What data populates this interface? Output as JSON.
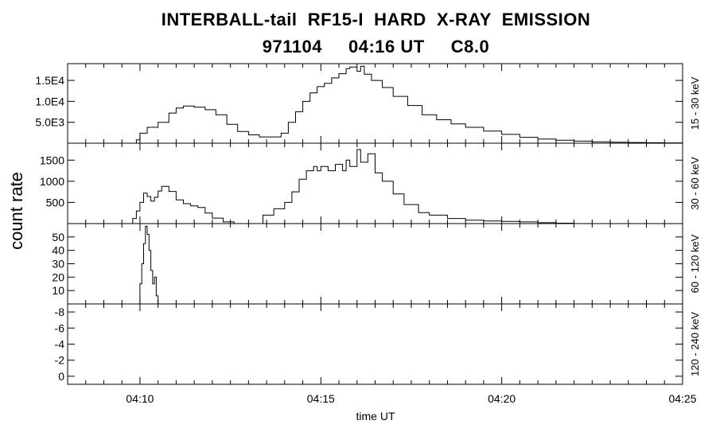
{
  "title": {
    "line1": "INTERBALL-tail  RF15-I  HARD  X-RAY  EMISSION",
    "line2": "971104     04:16 UT     C8.0"
  },
  "chart_data": {
    "type": "line",
    "ylabel": "count rate",
    "xlabel": "time UT",
    "x_axis": {
      "start_min": 248.0,
      "end_min": 265.0,
      "ticks": [
        {
          "min": 250,
          "label": "04:10"
        },
        {
          "min": 255,
          "label": "04:15"
        },
        {
          "min": 260,
          "label": "04:20"
        },
        {
          "min": 265,
          "label": "04:25"
        }
      ]
    },
    "panels": [
      {
        "name": "15 - 30 keV",
        "ylim": [
          0,
          19000
        ],
        "yticks": [
          {
            "v": 5000,
            "label": "5.0E3"
          },
          {
            "v": 10000,
            "label": "1.0E4"
          },
          {
            "v": 15000,
            "label": "1.5E4"
          }
        ],
        "series": [
          [
            249.7,
            0
          ],
          [
            249.9,
            800
          ],
          [
            250.0,
            2400
          ],
          [
            250.2,
            3800
          ],
          [
            250.5,
            5000
          ],
          [
            250.8,
            7200
          ],
          [
            251.0,
            8400
          ],
          [
            251.2,
            8900
          ],
          [
            251.5,
            8600
          ],
          [
            251.8,
            8000
          ],
          [
            252.1,
            6800
          ],
          [
            252.4,
            4500
          ],
          [
            252.7,
            2800
          ],
          [
            253.0,
            2000
          ],
          [
            253.3,
            1500
          ],
          [
            253.6,
            1500
          ],
          [
            253.9,
            2400
          ],
          [
            254.1,
            5000
          ],
          [
            254.3,
            7500
          ],
          [
            254.5,
            10000
          ],
          [
            254.7,
            12000
          ],
          [
            254.9,
            13500
          ],
          [
            255.1,
            14300
          ],
          [
            255.3,
            15600
          ],
          [
            255.5,
            16600
          ],
          [
            255.7,
            17800
          ],
          [
            255.8,
            18200
          ],
          [
            256.0,
            17200
          ],
          [
            256.1,
            18400
          ],
          [
            256.2,
            16500
          ],
          [
            256.4,
            15000
          ],
          [
            256.7,
            13300
          ],
          [
            257.0,
            11200
          ],
          [
            257.4,
            9000
          ],
          [
            257.8,
            6800
          ],
          [
            258.2,
            5600
          ],
          [
            258.6,
            4600
          ],
          [
            259.0,
            3800
          ],
          [
            259.5,
            2900
          ],
          [
            260.0,
            2100
          ],
          [
            260.5,
            1400
          ],
          [
            261.0,
            1000
          ],
          [
            261.5,
            700
          ],
          [
            262.0,
            500
          ],
          [
            262.5,
            350
          ],
          [
            263.0,
            250
          ],
          [
            263.5,
            180
          ],
          [
            264.0,
            120
          ],
          [
            264.5,
            80
          ],
          [
            265.0,
            40
          ]
        ]
      },
      {
        "name": "30 - 60 keV",
        "ylim": [
          0,
          1900
        ],
        "yticks": [
          {
            "v": 500,
            "label": "500"
          },
          {
            "v": 1000,
            "label": "1000"
          },
          {
            "v": 1500,
            "label": "1500"
          }
        ],
        "series": [
          [
            249.6,
            0
          ],
          [
            249.8,
            120
          ],
          [
            249.9,
            300
          ],
          [
            250.0,
            500
          ],
          [
            250.1,
            720
          ],
          [
            250.2,
            640
          ],
          [
            250.3,
            530
          ],
          [
            250.4,
            620
          ],
          [
            250.5,
            770
          ],
          [
            250.6,
            880
          ],
          [
            250.8,
            760
          ],
          [
            251.0,
            560
          ],
          [
            251.2,
            470
          ],
          [
            251.4,
            420
          ],
          [
            251.6,
            380
          ],
          [
            251.8,
            250
          ],
          [
            252.0,
            130
          ],
          [
            252.3,
            40
          ],
          [
            252.6,
            0
          ],
          [
            253.2,
            0
          ],
          [
            253.4,
            200
          ],
          [
            253.7,
            350
          ],
          [
            254.0,
            500
          ],
          [
            254.2,
            750
          ],
          [
            254.4,
            1050
          ],
          [
            254.6,
            1250
          ],
          [
            254.8,
            1350
          ],
          [
            254.9,
            1250
          ],
          [
            255.0,
            1350
          ],
          [
            255.2,
            1250
          ],
          [
            255.4,
            1400
          ],
          [
            255.6,
            1250
          ],
          [
            255.7,
            1500
          ],
          [
            255.8,
            1350
          ],
          [
            256.0,
            1750
          ],
          [
            256.1,
            1450
          ],
          [
            256.3,
            1650
          ],
          [
            256.5,
            1200
          ],
          [
            256.7,
            1000
          ],
          [
            257.0,
            700
          ],
          [
            257.3,
            450
          ],
          [
            257.7,
            260
          ],
          [
            258.0,
            200
          ],
          [
            258.5,
            120
          ],
          [
            259.0,
            80
          ],
          [
            259.5,
            60
          ],
          [
            260.0,
            50
          ],
          [
            260.5,
            40
          ],
          [
            261.0,
            20
          ],
          [
            261.5,
            10
          ],
          [
            262.0,
            0
          ]
        ]
      },
      {
        "name": "60 - 120 keV",
        "ylim": [
          0,
          60
        ],
        "yticks": [
          {
            "v": 10,
            "label": "10"
          },
          {
            "v": 20,
            "label": "20"
          },
          {
            "v": 30,
            "label": "30"
          },
          {
            "v": 40,
            "label": "40"
          },
          {
            "v": 50,
            "label": "50"
          }
        ],
        "series": [
          [
            249.95,
            0
          ],
          [
            250.0,
            15
          ],
          [
            250.05,
            30
          ],
          [
            250.1,
            45
          ],
          [
            250.15,
            58
          ],
          [
            250.2,
            52
          ],
          [
            250.25,
            40
          ],
          [
            250.3,
            25
          ],
          [
            250.35,
            15
          ],
          [
            250.4,
            20
          ],
          [
            250.45,
            6
          ],
          [
            250.5,
            0
          ]
        ]
      },
      {
        "name": "120 - 240 keV",
        "ylim": [
          -1,
          9
        ],
        "ytick_labels_note": "labels printed as shown",
        "yticks": [
          {
            "v": 0,
            "label": "0"
          },
          {
            "v": 2,
            "label": "-2"
          },
          {
            "v": 4,
            "label": "-4"
          },
          {
            "v": 6,
            "label": "-6"
          },
          {
            "v": 8,
            "label": "-8"
          }
        ],
        "series": []
      }
    ]
  }
}
